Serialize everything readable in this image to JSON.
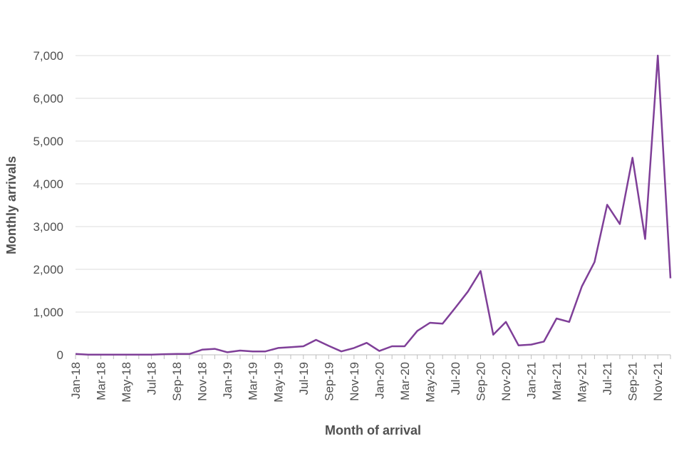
{
  "chart_data": {
    "type": "line",
    "xlabel": "Month of arrival",
    "ylabel": "Monthly arrivals",
    "ylim": [
      0,
      7000
    ],
    "yticks": [
      0,
      1000,
      2000,
      3000,
      4000,
      5000,
      6000,
      7000
    ],
    "ytick_labels": [
      "0",
      "1,000",
      "2,000",
      "3,000",
      "4,000",
      "5,000",
      "6,000",
      "7,000"
    ],
    "x": [
      "Jan-18",
      "Feb-18",
      "Mar-18",
      "Apr-18",
      "May-18",
      "Jun-18",
      "Jul-18",
      "Aug-18",
      "Sep-18",
      "Oct-18",
      "Nov-18",
      "Dec-18",
      "Jan-19",
      "Feb-19",
      "Mar-19",
      "Apr-19",
      "May-19",
      "Jun-19",
      "Jul-19",
      "Aug-19",
      "Sep-19",
      "Oct-19",
      "Nov-19",
      "Dec-19",
      "Jan-20",
      "Feb-20",
      "Mar-20",
      "Apr-20",
      "May-20",
      "Jun-20",
      "Jul-20",
      "Aug-20",
      "Sep-20",
      "Oct-20",
      "Nov-20",
      "Dec-20",
      "Jan-21",
      "Feb-21",
      "Mar-21",
      "Apr-21",
      "May-21",
      "Jun-21",
      "Jul-21",
      "Aug-21",
      "Sep-21",
      "Oct-21",
      "Nov-21",
      "Dec-21"
    ],
    "xtick_labels": [
      "Jan-18",
      "Mar-18",
      "May-18",
      "Jul-18",
      "Sep-18",
      "Nov-18",
      "Jan-19",
      "Mar-19",
      "May-19",
      "Jul-19",
      "Sep-19",
      "Nov-19",
      "Jan-20",
      "Mar-20",
      "May-20",
      "Jul-20",
      "Sep-20",
      "Nov-20",
      "Jan-21",
      "Mar-21",
      "May-21",
      "Jul-21",
      "Sep-21",
      "Nov-21"
    ],
    "series": [
      {
        "values": [
          20,
          5,
          5,
          5,
          5,
          5,
          5,
          15,
          20,
          20,
          120,
          140,
          60,
          100,
          80,
          80,
          160,
          180,
          200,
          350,
          210,
          80,
          160,
          280,
          90,
          200,
          200,
          560,
          750,
          730,
          1100,
          1480,
          1960,
          470,
          770,
          220,
          240,
          310,
          850,
          770,
          1600,
          2170,
          3510,
          3060,
          4610,
          2710,
          7000,
          1790
        ],
        "color": "#7f3f98"
      }
    ],
    "grid": true,
    "legend": "none"
  }
}
